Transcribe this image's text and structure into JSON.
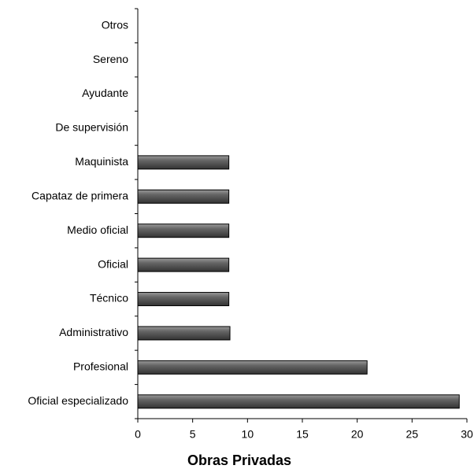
{
  "chart_data": {
    "type": "barh",
    "xlabel": "Obras Privadas",
    "categories": [
      "Otros",
      "Sereno",
      "Ayudante",
      "De supervisión",
      "Maquinista",
      "Capataz de primera",
      "Medio oficial",
      "Oficial",
      "Técnico",
      "Administrativo",
      "Profesional",
      "Oficial especializado"
    ],
    "values": [
      0,
      0,
      0,
      0,
      8.3,
      8.3,
      8.3,
      8.3,
      8.3,
      8.4,
      20.9,
      29.3
    ],
    "color": "#555555",
    "xlim": [
      0,
      30
    ],
    "xticks": [
      0,
      5,
      10,
      15,
      20,
      25,
      30
    ],
    "grid": false
  }
}
